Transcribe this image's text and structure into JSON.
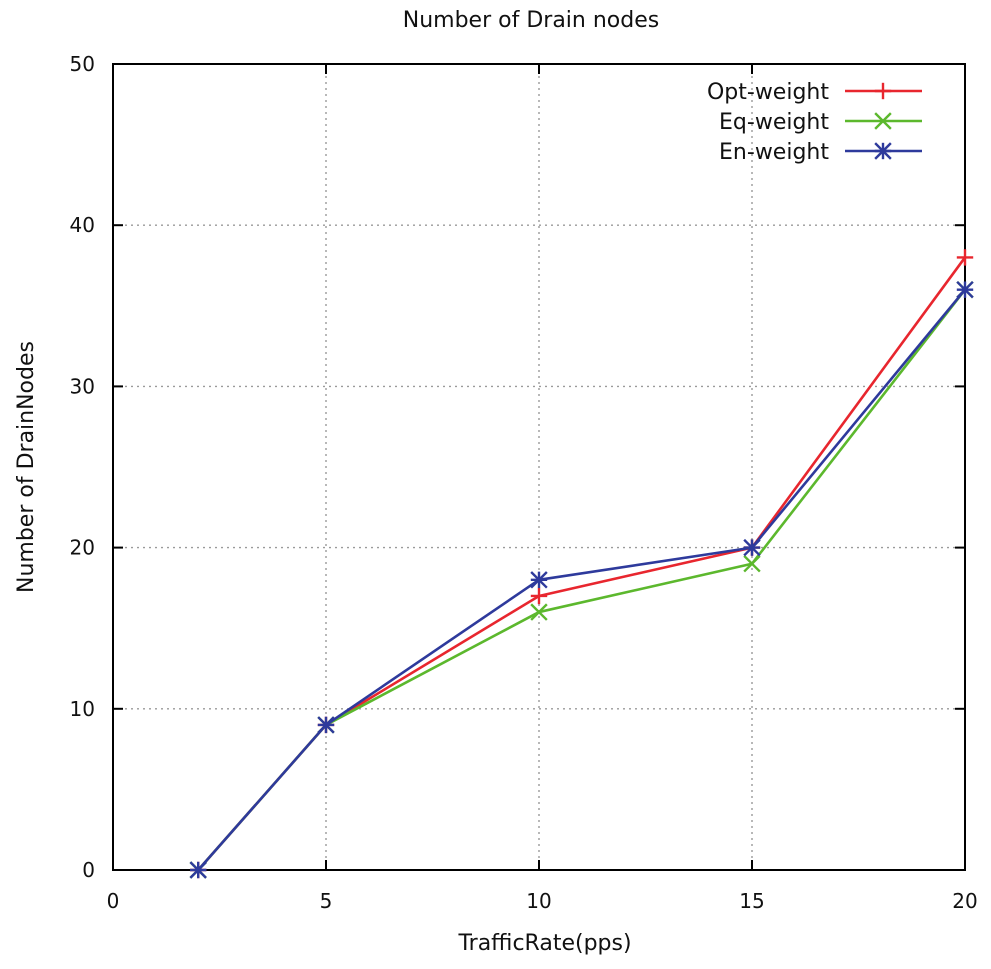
{
  "chart_data": {
    "type": "line",
    "title": "Number of Drain nodes",
    "xlabel": "TrafficRate(pps)",
    "ylabel": "Number of DrainNodes",
    "xlim": [
      0,
      20
    ],
    "ylim": [
      0,
      50
    ],
    "xticks": [
      0,
      5,
      10,
      15,
      20
    ],
    "yticks": [
      0,
      10,
      20,
      30,
      40,
      50
    ],
    "grid": true,
    "legend_position": "top-right",
    "x": [
      2,
      5,
      10,
      15,
      20
    ],
    "series": [
      {
        "name": "Opt-weight",
        "color": "#e8262e",
        "marker": "plus",
        "values": [
          0,
          9,
          17,
          20,
          38
        ]
      },
      {
        "name": "Eq-weight",
        "color": "#5cb82d",
        "marker": "cross",
        "values": [
          0,
          9,
          16,
          19,
          36
        ]
      },
      {
        "name": "En-weight",
        "color": "#2e3a9c",
        "marker": "star",
        "values": [
          0,
          9,
          18,
          20,
          36
        ]
      }
    ]
  }
}
